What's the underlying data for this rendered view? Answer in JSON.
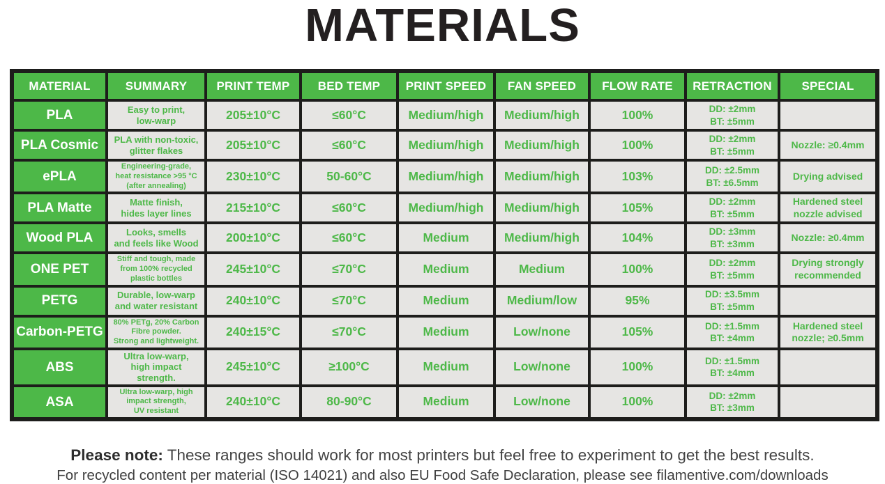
{
  "title": "MATERIALS",
  "colors": {
    "brand_green": "#4db848",
    "cell_background": "#e6e5e3",
    "table_border": "#1d1d1b",
    "header_text": "#ffffff",
    "title_text": "#231f20",
    "footer_text": "#444444"
  },
  "table": {
    "headers": [
      "MATERIAL",
      "SUMMARY",
      "PRINT TEMP",
      "BED TEMP",
      "PRINT SPEED",
      "FAN SPEED",
      "FLOW RATE",
      "RETRACTION",
      "SPECIAL"
    ],
    "rows": [
      {
        "material": "PLA",
        "summary": "Easy to print,\nlow-warp",
        "print_temp": "205±10°C",
        "bed_temp": "≤60°C",
        "print_speed": "Medium/high",
        "fan_speed": "Medium/high",
        "flow_rate": "100%",
        "retraction": "DD: ±2mm\nBT: ±5mm",
        "special": ""
      },
      {
        "material": "PLA Cosmic",
        "summary": "PLA with non-toxic,\nglitter flakes",
        "print_temp": "205±10°C",
        "bed_temp": "≤60°C",
        "print_speed": "Medium/high",
        "fan_speed": "Medium/high",
        "flow_rate": "100%",
        "retraction": "DD: ±2mm\nBT: ±5mm",
        "special": "Nozzle: ≥0.4mm"
      },
      {
        "material": "ePLA",
        "summary": "Engineering-grade,\nheat resistance >95 °C\n(after annealing)",
        "print_temp": "230±10°C",
        "bed_temp": "50-60°C",
        "print_speed": "Medium/high",
        "fan_speed": "Medium/high",
        "flow_rate": "103%",
        "retraction": "DD: ±2.5mm\nBT: ±6.5mm",
        "special": "Drying advised"
      },
      {
        "material": "PLA Matte",
        "summary": "Matte finish,\nhides layer lines",
        "print_temp": "215±10°C",
        "bed_temp": "≤60°C",
        "print_speed": "Medium/high",
        "fan_speed": "Medium/high",
        "flow_rate": "105%",
        "retraction": "DD: ±2mm\nBT: ±5mm",
        "special": "Hardened steel\nnozzle advised"
      },
      {
        "material": "Wood PLA",
        "summary": "Looks, smells\nand feels like Wood",
        "print_temp": "200±10°C",
        "bed_temp": "≤60°C",
        "print_speed": "Medium",
        "fan_speed": "Medium/high",
        "flow_rate": "104%",
        "retraction": "DD: ±3mm\nBT: ±3mm",
        "special": "Nozzle: ≥0.4mm"
      },
      {
        "material": "ONE PET",
        "summary": "Stiff and tough, made\nfrom 100% recycled\nplastic bottles",
        "print_temp": "245±10°C",
        "bed_temp": "≤70°C",
        "print_speed": "Medium",
        "fan_speed": "Medium",
        "flow_rate": "100%",
        "retraction": "DD: ±2mm\nBT: ±5mm",
        "special": "Drying strongly\nrecommended"
      },
      {
        "material": "PETG",
        "summary": "Durable, low-warp\nand water resistant",
        "print_temp": "240±10°C",
        "bed_temp": "≤70°C",
        "print_speed": "Medium",
        "fan_speed": "Medium/low",
        "flow_rate": "95%",
        "retraction": "DD: ±3.5mm\nBT: ±5mm",
        "special": ""
      },
      {
        "material": "Carbon-PETG",
        "summary": "80% PETg, 20% Carbon\nFibre powder.\nStrong and lightweight.",
        "print_temp": "240±15°C",
        "bed_temp": "≤70°C",
        "print_speed": "Medium",
        "fan_speed": "Low/none",
        "flow_rate": "105%",
        "retraction": "DD: ±1.5mm\nBT: ±4mm",
        "special": "Hardened steel\nnozzle; ≥0.5mm"
      },
      {
        "material": "ABS",
        "summary": "Ultra low-warp,\nhigh impact strength.",
        "print_temp": "245±10°C",
        "bed_temp": "≥100°C",
        "print_speed": "Medium",
        "fan_speed": "Low/none",
        "flow_rate": "100%",
        "retraction": "DD: ±1.5mm\nBT: ±4mm",
        "special": ""
      },
      {
        "material": "ASA",
        "summary": "Ultra low-warp, high\nimpact strength,\nUV resistant",
        "print_temp": "240±10°C",
        "bed_temp": "80-90°C",
        "print_speed": "Medium",
        "fan_speed": "Low/none",
        "flow_rate": "100%",
        "retraction": "DD: ±2mm\nBT: ±3mm",
        "special": ""
      }
    ]
  },
  "footer": {
    "note_label": "Please note:",
    "note_text": "These ranges should work for most printers but feel free to experiment to get the best results.",
    "line2": "For recycled content per material (ISO 14021) and also EU Food Safe Declaration, please see filamentive.com/downloads"
  }
}
